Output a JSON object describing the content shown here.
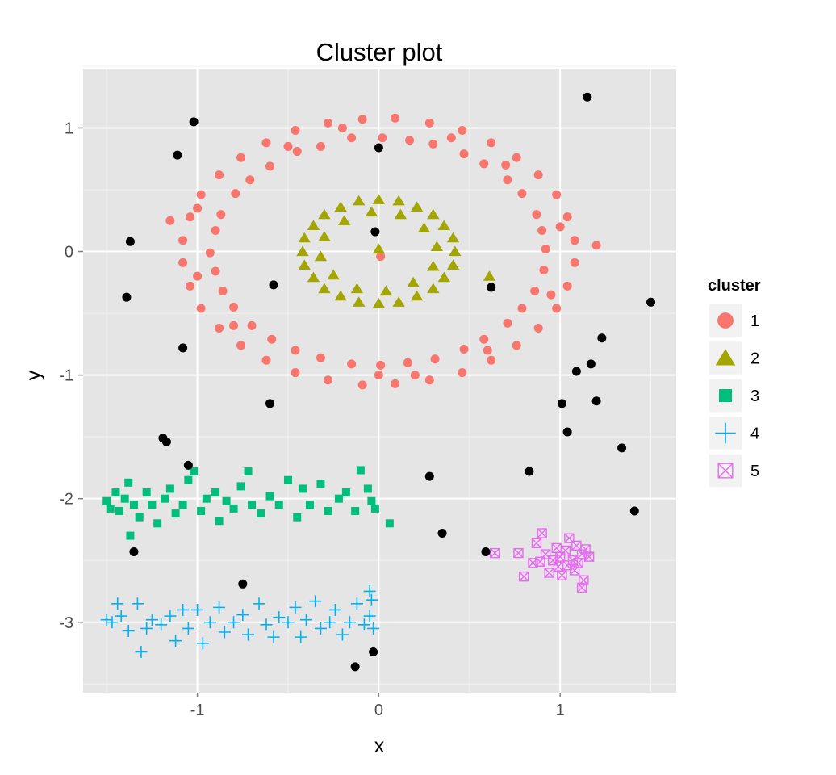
{
  "chart_data": {
    "type": "scatter",
    "title": "Cluster plot",
    "xlabel": "x",
    "ylabel": "y",
    "xlim": [
      -1.63,
      1.64
    ],
    "ylim": [
      -3.57,
      1.48
    ],
    "xticks": [
      -1,
      0,
      1
    ],
    "yticks": [
      1,
      0,
      -1,
      -2,
      -3
    ],
    "grid": true,
    "background": "#E5E5E5",
    "legend": {
      "title": "cluster",
      "position": "right"
    },
    "noise": {
      "color": "#000000",
      "shape": "circle",
      "points": [
        [
          1.15,
          1.25
        ],
        [
          -1.02,
          1.05
        ],
        [
          0.0,
          0.84
        ],
        [
          -1.11,
          0.78
        ],
        [
          -1.37,
          0.08
        ],
        [
          -0.02,
          0.16
        ],
        [
          -0.58,
          -0.27
        ],
        [
          -1.39,
          -0.37
        ],
        [
          0.62,
          -0.29
        ],
        [
          1.5,
          -0.41
        ],
        [
          -1.08,
          -0.78
        ],
        [
          1.23,
          -0.7
        ],
        [
          1.17,
          -0.91
        ],
        [
          1.09,
          -0.97
        ],
        [
          1.2,
          -1.21
        ],
        [
          -0.6,
          -1.23
        ],
        [
          1.01,
          -1.23
        ],
        [
          1.04,
          -1.46
        ],
        [
          -1.19,
          -1.51
        ],
        [
          -1.17,
          -1.54
        ],
        [
          -1.05,
          -1.73
        ],
        [
          1.34,
          -1.59
        ],
        [
          0.83,
          -1.78
        ],
        [
          0.28,
          -1.82
        ],
        [
          1.41,
          -2.1
        ],
        [
          0.35,
          -2.28
        ],
        [
          0.59,
          -2.43
        ],
        [
          -1.35,
          -2.43
        ],
        [
          -0.75,
          -2.69
        ],
        [
          -0.03,
          -3.24
        ],
        [
          -0.13,
          -3.36
        ]
      ]
    },
    "series": [
      {
        "name": "1",
        "color": "#F8766D",
        "shape": "circle",
        "points": [
          [
            0.92,
            0.02
          ],
          [
            0.9,
            0.17
          ],
          [
            0.87,
            0.3
          ],
          [
            0.79,
            0.47
          ],
          [
            0.71,
            0.58
          ],
          [
            0.58,
            0.71
          ],
          [
            0.47,
            0.79
          ],
          [
            0.3,
            0.87
          ],
          [
            0.17,
            0.9
          ],
          [
            0.02,
            0.92
          ],
          [
            -0.15,
            0.92
          ],
          [
            -0.32,
            0.85
          ],
          [
            -0.45,
            0.81
          ],
          [
            -0.6,
            0.69
          ],
          [
            -0.71,
            0.58
          ],
          [
            -0.79,
            0.47
          ],
          [
            -0.87,
            0.3
          ],
          [
            -0.9,
            0.17
          ],
          [
            -0.93,
            -0.01
          ],
          [
            -0.9,
            -0.16
          ],
          [
            -0.86,
            -0.32
          ],
          [
            -0.8,
            -0.45
          ],
          [
            -0.7,
            -0.6
          ],
          [
            -0.59,
            -0.71
          ],
          [
            -0.46,
            -0.8
          ],
          [
            -0.32,
            -0.86
          ],
          [
            -0.15,
            -0.91
          ],
          [
            0.01,
            -0.92
          ],
          [
            0.16,
            -0.9
          ],
          [
            0.31,
            -0.87
          ],
          [
            0.47,
            -0.79
          ],
          [
            0.58,
            -0.71
          ],
          [
            0.71,
            -0.58
          ],
          [
            0.79,
            -0.46
          ],
          [
            0.86,
            -0.32
          ],
          [
            0.91,
            -0.15
          ],
          [
            1.08,
            0.09
          ],
          [
            1.04,
            0.28
          ],
          [
            0.98,
            0.46
          ],
          [
            0.88,
            0.62
          ],
          [
            0.76,
            0.76
          ],
          [
            0.62,
            0.88
          ],
          [
            0.46,
            0.98
          ],
          [
            0.28,
            1.04
          ],
          [
            0.09,
            1.08
          ],
          [
            -0.09,
            1.07
          ],
          [
            -0.28,
            1.04
          ],
          [
            -0.46,
            0.98
          ],
          [
            -0.62,
            0.88
          ],
          [
            -0.76,
            0.76
          ],
          [
            -0.88,
            0.62
          ],
          [
            -0.98,
            0.46
          ],
          [
            -1.04,
            0.28
          ],
          [
            -1.08,
            0.09
          ],
          [
            -1.08,
            -0.09
          ],
          [
            -1.04,
            -0.28
          ],
          [
            -0.98,
            -0.46
          ],
          [
            -0.88,
            -0.62
          ],
          [
            -0.76,
            -0.76
          ],
          [
            -0.62,
            -0.88
          ],
          [
            -0.46,
            -0.98
          ],
          [
            -0.28,
            -1.04
          ],
          [
            -0.09,
            -1.08
          ],
          [
            0.09,
            -1.07
          ],
          [
            0.28,
            -1.04
          ],
          [
            0.46,
            -0.98
          ],
          [
            0.62,
            -0.88
          ],
          [
            0.76,
            -0.76
          ],
          [
            0.88,
            -0.62
          ],
          [
            0.98,
            -0.46
          ],
          [
            1.04,
            -0.28
          ],
          [
            1.08,
            -0.09
          ],
          [
            1.0,
            0.2
          ],
          [
            0.7,
            0.7
          ],
          [
            -0.5,
            0.85
          ],
          [
            -1.0,
            -0.2
          ],
          [
            0.2,
            -1.0
          ],
          [
            -0.8,
            -0.6
          ],
          [
            0.4,
            0.92
          ],
          [
            0.95,
            -0.35
          ],
          [
            -0.2,
            1.0
          ],
          [
            0.6,
            -0.8
          ],
          [
            -1.0,
            0.35
          ],
          [
            0.0,
            -1.0
          ],
          [
            1.2,
            0.05
          ],
          [
            -1.15,
            0.25
          ],
          [
            0.01,
            -0.04
          ]
        ]
      },
      {
        "name": "2",
        "color": "#A3A500",
        "shape": "triangle",
        "points": [
          [
            0.42,
            0.0
          ],
          [
            0.41,
            0.11
          ],
          [
            0.36,
            0.21
          ],
          [
            0.3,
            0.3
          ],
          [
            0.21,
            0.36
          ],
          [
            0.11,
            0.41
          ],
          [
            0.0,
            0.42
          ],
          [
            -0.11,
            0.41
          ],
          [
            -0.21,
            0.36
          ],
          [
            -0.3,
            0.3
          ],
          [
            -0.36,
            0.21
          ],
          [
            -0.41,
            0.11
          ],
          [
            -0.42,
            0.0
          ],
          [
            -0.41,
            -0.11
          ],
          [
            -0.36,
            -0.21
          ],
          [
            -0.3,
            -0.3
          ],
          [
            -0.21,
            -0.36
          ],
          [
            -0.11,
            -0.41
          ],
          [
            0.0,
            -0.42
          ],
          [
            0.11,
            -0.41
          ],
          [
            0.21,
            -0.36
          ],
          [
            0.3,
            -0.3
          ],
          [
            0.36,
            -0.21
          ],
          [
            0.41,
            -0.11
          ],
          [
            0.32,
            0.04
          ],
          [
            0.25,
            0.19
          ],
          [
            0.12,
            0.3
          ],
          [
            -0.04,
            0.32
          ],
          [
            -0.19,
            0.25
          ],
          [
            -0.3,
            0.12
          ],
          [
            -0.32,
            -0.04
          ],
          [
            -0.25,
            -0.19
          ],
          [
            -0.12,
            -0.3
          ],
          [
            0.04,
            -0.32
          ],
          [
            0.19,
            -0.25
          ],
          [
            0.3,
            -0.12
          ],
          [
            0.0,
            0.02
          ],
          [
            0.61,
            -0.2
          ]
        ]
      },
      {
        "name": "3",
        "color": "#00BF7D",
        "shape": "square",
        "points": [
          [
            -1.5,
            -2.02
          ],
          [
            -1.48,
            -2.08
          ],
          [
            -1.45,
            -1.95
          ],
          [
            -1.43,
            -2.1
          ],
          [
            -1.4,
            -2.0
          ],
          [
            -1.38,
            -1.87
          ],
          [
            -1.37,
            -2.3
          ],
          [
            -1.35,
            -2.05
          ],
          [
            -1.32,
            -2.15
          ],
          [
            -1.28,
            -1.95
          ],
          [
            -1.25,
            -2.05
          ],
          [
            -1.22,
            -2.2
          ],
          [
            -1.18,
            -2.0
          ],
          [
            -1.15,
            -1.92
          ],
          [
            -1.12,
            -2.12
          ],
          [
            -1.08,
            -2.05
          ],
          [
            -1.05,
            -1.85
          ],
          [
            -1.02,
            -1.78
          ],
          [
            -0.98,
            -2.1
          ],
          [
            -0.95,
            -2.0
          ],
          [
            -0.9,
            -1.95
          ],
          [
            -0.88,
            -2.18
          ],
          [
            -0.84,
            -2.02
          ],
          [
            -0.8,
            -2.08
          ],
          [
            -0.76,
            -1.9
          ],
          [
            -0.72,
            -1.78
          ],
          [
            -0.7,
            -2.05
          ],
          [
            -0.65,
            -2.12
          ],
          [
            -0.6,
            -1.98
          ],
          [
            -0.55,
            -2.05
          ],
          [
            -0.5,
            -1.85
          ],
          [
            -0.45,
            -2.15
          ],
          [
            -0.42,
            -1.92
          ],
          [
            -0.38,
            -2.05
          ],
          [
            -0.32,
            -1.88
          ],
          [
            -0.28,
            -2.1
          ],
          [
            -0.22,
            -2.0
          ],
          [
            -0.18,
            -1.95
          ],
          [
            -0.13,
            -2.1
          ],
          [
            -0.1,
            -1.77
          ],
          [
            -0.06,
            -1.92
          ],
          [
            -0.04,
            -2.02
          ],
          [
            -0.02,
            -2.08
          ],
          [
            0.06,
            -2.2
          ]
        ]
      },
      {
        "name": "4",
        "color": "#00B0F6",
        "shape": "plus",
        "points": [
          [
            -1.5,
            -2.98
          ],
          [
            -1.47,
            -3.0
          ],
          [
            -1.44,
            -2.85
          ],
          [
            -1.42,
            -2.95
          ],
          [
            -1.38,
            -3.07
          ],
          [
            -1.33,
            -2.85
          ],
          [
            -1.31,
            -3.24
          ],
          [
            -1.28,
            -3.05
          ],
          [
            -1.25,
            -2.98
          ],
          [
            -1.2,
            -3.02
          ],
          [
            -1.15,
            -2.95
          ],
          [
            -1.12,
            -3.15
          ],
          [
            -1.08,
            -2.9
          ],
          [
            -1.05,
            -3.05
          ],
          [
            -1.0,
            -2.9
          ],
          [
            -0.97,
            -3.17
          ],
          [
            -0.93,
            -3.0
          ],
          [
            -0.88,
            -2.88
          ],
          [
            -0.85,
            -3.08
          ],
          [
            -0.8,
            -3.0
          ],
          [
            -0.75,
            -2.94
          ],
          [
            -0.72,
            -3.1
          ],
          [
            -0.66,
            -2.85
          ],
          [
            -0.62,
            -3.02
          ],
          [
            -0.58,
            -3.12
          ],
          [
            -0.55,
            -2.96
          ],
          [
            -0.5,
            -3.0
          ],
          [
            -0.46,
            -2.88
          ],
          [
            -0.43,
            -3.12
          ],
          [
            -0.4,
            -2.98
          ],
          [
            -0.35,
            -2.83
          ],
          [
            -0.32,
            -3.05
          ],
          [
            -0.27,
            -3.0
          ],
          [
            -0.24,
            -2.9
          ],
          [
            -0.2,
            -3.1
          ],
          [
            -0.16,
            -3.0
          ],
          [
            -0.12,
            -2.85
          ],
          [
            -0.08,
            -3.02
          ],
          [
            -0.05,
            -2.95
          ],
          [
            -0.03,
            -3.05
          ],
          [
            -0.04,
            -2.82
          ],
          [
            -0.05,
            -2.75
          ]
        ]
      },
      {
        "name": "5",
        "color": "#E76BF3",
        "shape": "square-cross",
        "points": [
          [
            0.64,
            -2.44
          ],
          [
            0.77,
            -2.44
          ],
          [
            0.8,
            -2.63
          ],
          [
            0.87,
            -2.36
          ],
          [
            0.89,
            -2.51
          ],
          [
            0.9,
            -2.28
          ],
          [
            0.92,
            -2.45
          ],
          [
            0.94,
            -2.6
          ],
          [
            0.96,
            -2.5
          ],
          [
            0.98,
            -2.4
          ],
          [
            0.99,
            -2.55
          ],
          [
            1.0,
            -2.47
          ],
          [
            1.01,
            -2.62
          ],
          [
            1.03,
            -2.42
          ],
          [
            1.04,
            -2.54
          ],
          [
            1.05,
            -2.32
          ],
          [
            1.07,
            -2.5
          ],
          [
            1.08,
            -2.58
          ],
          [
            1.09,
            -2.38
          ],
          [
            1.1,
            -2.52
          ],
          [
            1.12,
            -2.45
          ],
          [
            1.13,
            -2.66
          ],
          [
            1.14,
            -2.41
          ],
          [
            1.16,
            -2.47
          ],
          [
            1.12,
            -2.72
          ],
          [
            0.85,
            -2.52
          ]
        ]
      }
    ]
  }
}
